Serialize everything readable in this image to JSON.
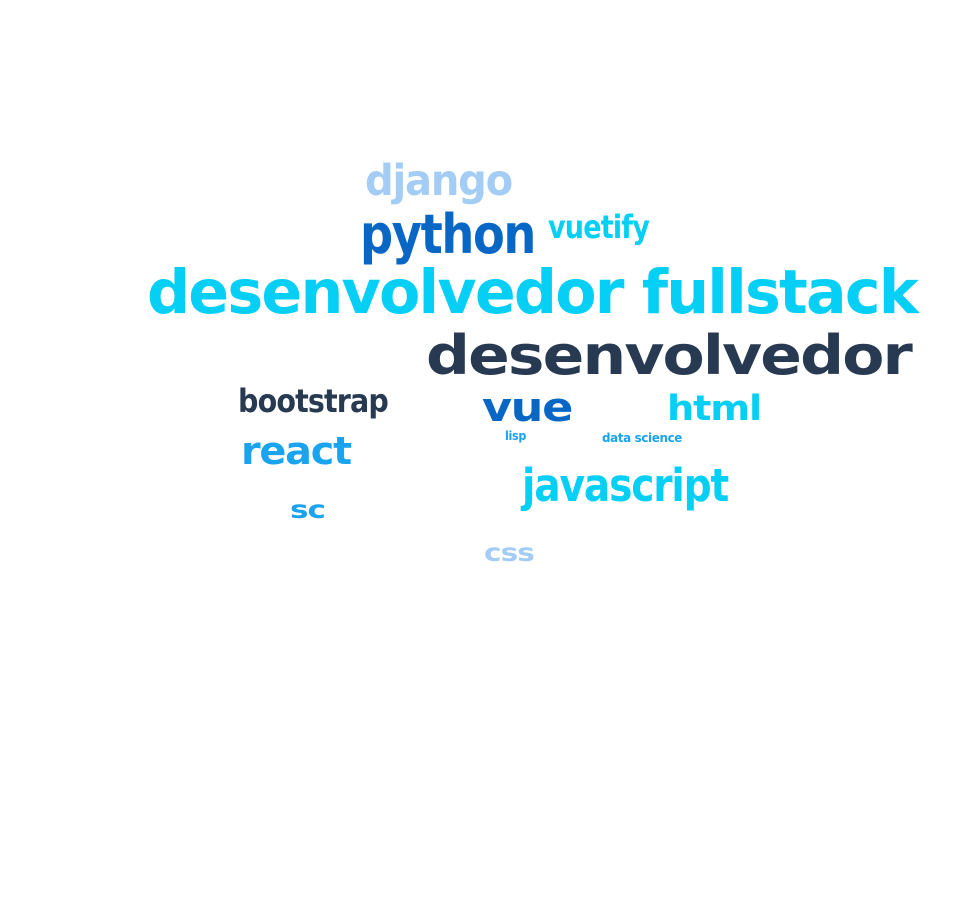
{
  "word_cloud": {
    "words": [
      {
        "text": "django",
        "color": "#a3cdf4",
        "weight": 3
      },
      {
        "text": "python",
        "color": "#0867c4",
        "weight": 4
      },
      {
        "text": "vuetify",
        "color": "#05cff5",
        "weight": 2
      },
      {
        "text": "desenvolvedor fullstack",
        "color": "#05cff5",
        "weight": 5
      },
      {
        "text": "desenvolvedor",
        "color": "#283a52",
        "weight": 5
      },
      {
        "text": "bootstrap",
        "color": "#283a52",
        "weight": 2
      },
      {
        "text": "vue",
        "color": "#0867c4",
        "weight": 4
      },
      {
        "text": "html",
        "color": "#05cff5",
        "weight": 3
      },
      {
        "text": "lisp",
        "color": "#1aa3ee",
        "weight": 1
      },
      {
        "text": "data science",
        "color": "#1aa3ee",
        "weight": 1
      },
      {
        "text": "react",
        "color": "#1aa3ee",
        "weight": 3
      },
      {
        "text": "javascript",
        "color": "#05cff5",
        "weight": 3
      },
      {
        "text": "sc",
        "color": "#1aa3ee",
        "weight": 2
      },
      {
        "text": "css",
        "color": "#a3cdf4",
        "weight": 2
      }
    ]
  }
}
